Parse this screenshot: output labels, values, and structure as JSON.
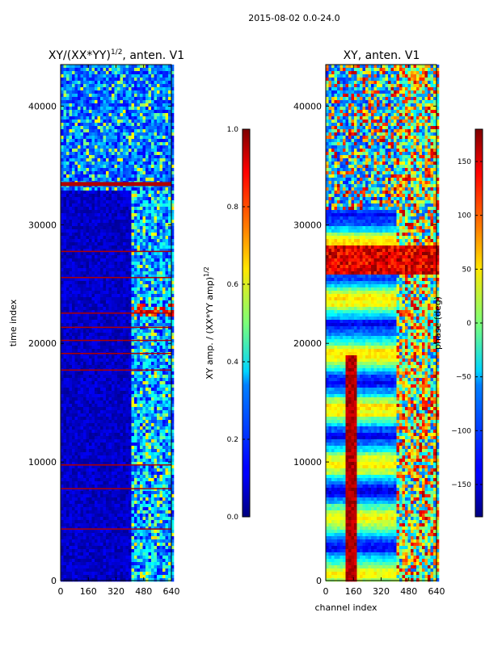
{
  "suptitle": "2015-08-02 0.0-24.0",
  "chart_data": [
    {
      "type": "heatmap",
      "title": "XY/(XX*YY)^1/2, anten. V1",
      "title_main": "XY/(XX*YY)",
      "title_exp": "1/2",
      "title_suffix": ", anten. V1",
      "xlabel": "",
      "ylabel": "time index",
      "xlim": [
        0,
        640
      ],
      "ylim": [
        0,
        43500
      ],
      "xticks": [
        "0",
        "160",
        "320",
        "480",
        "640"
      ],
      "yticks": [
        "0",
        "10000",
        "20000",
        "30000",
        "40000"
      ],
      "colormap": "jet",
      "colorbar": {
        "label_main": "XY amp. / (XX*YY amp)",
        "label_exp": "1/2",
        "range": [
          0.0,
          1.0
        ],
        "ticks": [
          "0.0",
          "0.2",
          "0.4",
          "0.6",
          "0.8",
          "1.0"
        ]
      }
    },
    {
      "type": "heatmap",
      "title": "XY, anten. V1",
      "xlabel": "channel index",
      "ylabel": "",
      "xlim": [
        0,
        640
      ],
      "ylim": [
        0,
        43500
      ],
      "xticks": [
        "0",
        "160",
        "320",
        "480",
        "640"
      ],
      "yticks": [
        "0",
        "10000",
        "20000",
        "30000",
        "40000"
      ],
      "colormap": "jet",
      "colorbar": {
        "label": "phase (deg)",
        "range": [
          -180,
          180
        ],
        "ticks": [
          "−150",
          "−100",
          "−50",
          "0",
          "50",
          "100",
          "150"
        ]
      }
    }
  ]
}
